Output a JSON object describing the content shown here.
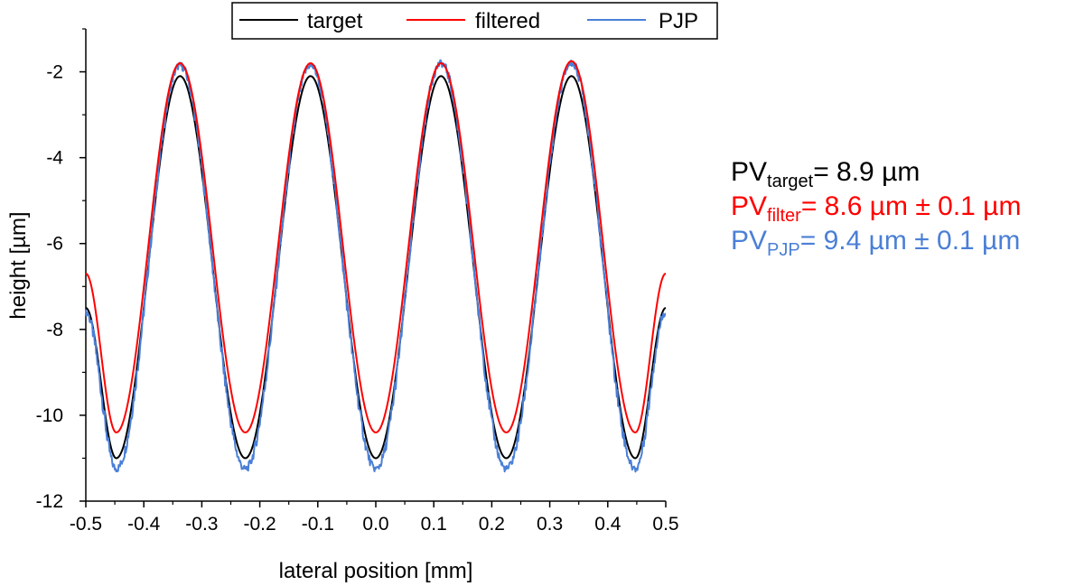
{
  "chart_data": {
    "type": "line",
    "xlabel": "lateral position [mm]",
    "ylabel": "height [µm]",
    "xlim": [
      -0.5,
      0.5
    ],
    "ylim": [
      -12,
      -1
    ],
    "x_ticks": [
      "-0.5",
      "-0.4",
      "-0.3",
      "-0.2",
      "-0.1",
      "0.0",
      "0.1",
      "0.2",
      "0.3",
      "0.4",
      "0.5"
    ],
    "y_ticks": [
      "-2",
      "-4",
      "-6",
      "-8",
      "-10",
      "-12"
    ],
    "legend_position": "top",
    "series": [
      {
        "name": "target",
        "color": "#000000",
        "x": [
          -0.5,
          -0.4475,
          -0.3375,
          -0.225,
          -0.1125,
          0.0,
          0.1125,
          0.225,
          0.3375,
          0.4475,
          0.5
        ],
        "y": [
          -7.5,
          -11.0,
          -2.1,
          -11.0,
          -2.1,
          -11.0,
          -2.1,
          -11.0,
          -2.1,
          -11.0,
          -7.5
        ]
      },
      {
        "name": "filtered",
        "color": "#ff0000",
        "x": [
          -0.5,
          -0.4475,
          -0.3375,
          -0.225,
          -0.1125,
          0.0,
          0.1125,
          0.225,
          0.3375,
          0.4475,
          0.5
        ],
        "y": [
          -6.7,
          -10.4,
          -1.8,
          -10.4,
          -1.8,
          -10.4,
          -1.8,
          -10.4,
          -1.75,
          -10.4,
          -6.7
        ]
      },
      {
        "name": "PJP",
        "color": "#4a7fd6",
        "x": [
          -0.5,
          -0.4475,
          -0.3375,
          -0.225,
          -0.1125,
          0.0,
          0.1125,
          0.225,
          0.3375,
          0.4475,
          0.5
        ],
        "y": [
          -7.6,
          -11.25,
          -1.85,
          -11.25,
          -1.85,
          -11.25,
          -1.8,
          -11.25,
          -1.8,
          -11.25,
          -7.6
        ]
      }
    ]
  },
  "annotations": [
    {
      "main": "PV",
      "sub": "target",
      "rest": "= 8.9 µm",
      "color": "#000000"
    },
    {
      "main": "PV",
      "sub": "filter",
      "rest": "= 8.6 µm ± 0.1 µm",
      "color": "#ff0000"
    },
    {
      "main": "PV",
      "sub": "PJP",
      "rest": "= 9.4 µm ± 0.1 µm",
      "color": "#4a7fd6"
    }
  ]
}
